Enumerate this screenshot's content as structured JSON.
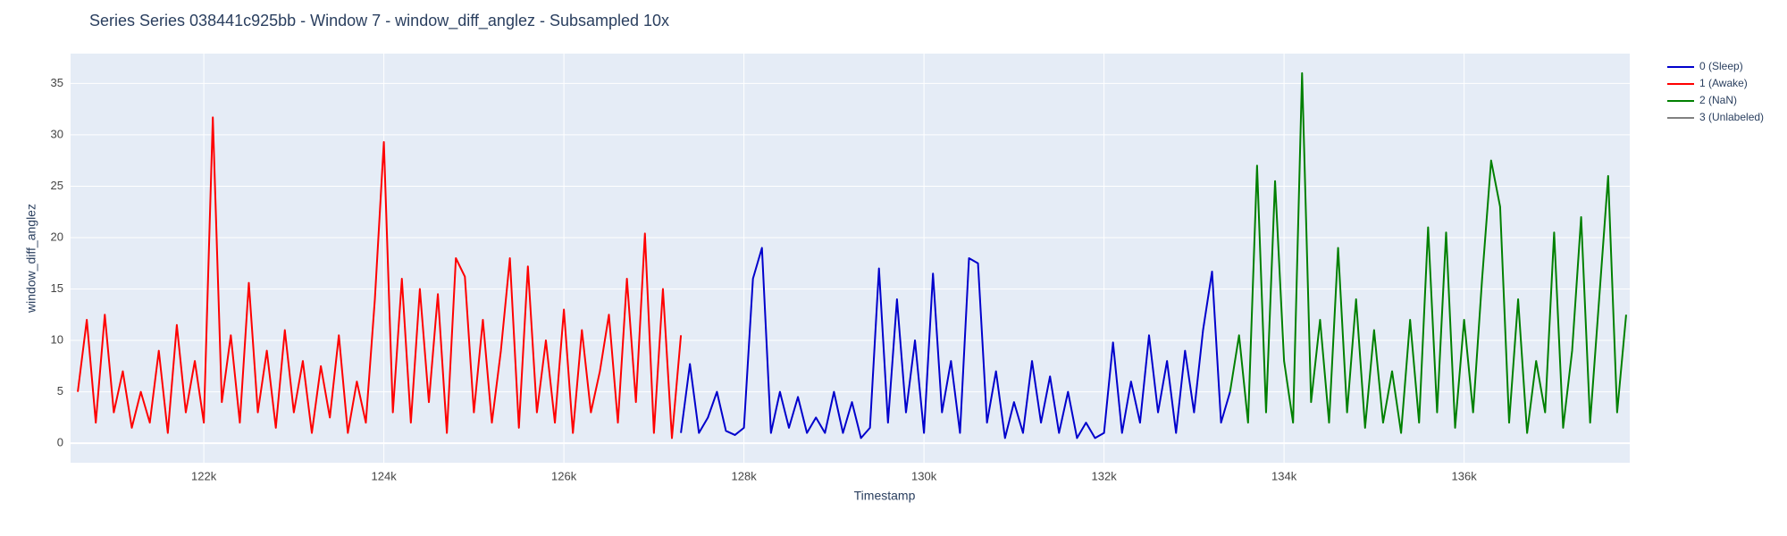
{
  "chart_data": {
    "type": "line",
    "title": "Series Series 038441c925bb - Window 7 - window_diff_anglez - Subsampled 10x",
    "x_label": "Timestamp",
    "y_label": "window_diff_anglez",
    "xlim": [
      120520,
      137840
    ],
    "ylim": [
      -1.9,
      37.9
    ],
    "xticks": [
      {
        "value": 122000,
        "label": "122k"
      },
      {
        "value": 124000,
        "label": "124k"
      },
      {
        "value": 126000,
        "label": "126k"
      },
      {
        "value": 128000,
        "label": "128k"
      },
      {
        "value": 130000,
        "label": "130k"
      },
      {
        "value": 132000,
        "label": "132k"
      },
      {
        "value": 134000,
        "label": "134k"
      },
      {
        "value": 136000,
        "label": "136k"
      }
    ],
    "yticks": [
      0,
      5,
      10,
      15,
      20,
      25,
      30,
      35
    ],
    "grid": true,
    "legend": "right",
    "series": [
      {
        "name": "0 (Sleep)",
        "color": "#0000cc",
        "x": [
          127300,
          127400,
          127500,
          127600,
          127700,
          127800,
          127900,
          128000,
          128100,
          128200,
          128300,
          128400,
          128500,
          128600,
          128700,
          128800,
          128900,
          129000,
          129100,
          129200,
          129300,
          129400,
          129500,
          129600,
          129700,
          129800,
          129900,
          130000,
          130100,
          130200,
          130300,
          130400,
          130500,
          130600,
          130700,
          130800,
          130900,
          131000,
          131100,
          131200,
          131300,
          131400,
          131500,
          131600,
          131700,
          131800,
          131900,
          132000,
          132100,
          132200,
          132300,
          132400,
          132500,
          132600,
          132700,
          132800,
          132900,
          133000,
          133100,
          133200,
          133300,
          133400
        ],
        "values": [
          1,
          7.7,
          1,
          2.5,
          5,
          1.2,
          0.8,
          1.5,
          16,
          19,
          1,
          5,
          1.5,
          4.5,
          1,
          2.5,
          1,
          5,
          1,
          4,
          0.5,
          1.5,
          17,
          2,
          14,
          3,
          10,
          1,
          16.5,
          3,
          8,
          1,
          18,
          17.5,
          2,
          7,
          0.5,
          4,
          1,
          8,
          2,
          6.5,
          1,
          5,
          0.5,
          2,
          0.5,
          1,
          9.8,
          1,
          6,
          2,
          10.5,
          3,
          8,
          1,
          9,
          3,
          11,
          16.7,
          2,
          5
        ]
      },
      {
        "name": "1 (Awake)",
        "color": "#ff0000",
        "x": [
          120600,
          120700,
          120800,
          120900,
          121000,
          121100,
          121200,
          121300,
          121400,
          121500,
          121600,
          121700,
          121800,
          121900,
          122000,
          122100,
          122200,
          122300,
          122400,
          122500,
          122600,
          122700,
          122800,
          122900,
          123000,
          123100,
          123200,
          123300,
          123400,
          123500,
          123600,
          123700,
          123800,
          123900,
          124000,
          124100,
          124200,
          124300,
          124400,
          124500,
          124600,
          124700,
          124800,
          124900,
          125000,
          125100,
          125200,
          125300,
          125400,
          125500,
          125600,
          125700,
          125800,
          125900,
          126000,
          126100,
          126200,
          126300,
          126400,
          126500,
          126600,
          126700,
          126800,
          126900,
          127000,
          127100,
          127200,
          127300
        ],
        "values": [
          5,
          12,
          2,
          12.5,
          3,
          7,
          1.5,
          5,
          2,
          9,
          1,
          11.5,
          3,
          8,
          2,
          31.7,
          4,
          10.5,
          2,
          15.6,
          3,
          9,
          1.5,
          11,
          3,
          8,
          1,
          7.5,
          2.5,
          10.5,
          1,
          6,
          2,
          14,
          29.3,
          3,
          16,
          2,
          15,
          4,
          14.5,
          1,
          18,
          16.2,
          3,
          12,
          2,
          9,
          18,
          1.5,
          17.2,
          3,
          10,
          2,
          13,
          1,
          11,
          3,
          7,
          12.5,
          2,
          16,
          4,
          20.4,
          1,
          15,
          0.5,
          10.5
        ]
      },
      {
        "name": "2 (NaN)",
        "color": "#008000",
        "x": [
          133400,
          133500,
          133600,
          133700,
          133800,
          133900,
          134000,
          134100,
          134200,
          134300,
          134400,
          134500,
          134600,
          134700,
          134800,
          134900,
          135000,
          135100,
          135200,
          135300,
          135400,
          135500,
          135600,
          135700,
          135800,
          135900,
          136000,
          136100,
          136200,
          136300,
          136400,
          136500,
          136600,
          136700,
          136800,
          136900,
          137000,
          137100,
          137200,
          137300,
          137400,
          137500,
          137600,
          137700,
          137800
        ],
        "values": [
          5,
          10.5,
          2,
          27,
          3,
          25.5,
          8,
          2,
          36,
          4,
          12,
          2,
          19,
          3,
          14,
          1.5,
          11,
          2,
          7,
          1,
          12,
          2,
          21,
          3,
          20.5,
          1.5,
          12,
          3,
          16,
          27.5,
          23,
          2,
          14,
          1,
          8,
          3,
          20.5,
          1.5,
          9,
          22,
          2,
          14,
          26,
          3,
          12.5
        ]
      },
      {
        "name": "3 (Unlabeled)",
        "color": "#808080",
        "x": [],
        "values": []
      }
    ]
  }
}
